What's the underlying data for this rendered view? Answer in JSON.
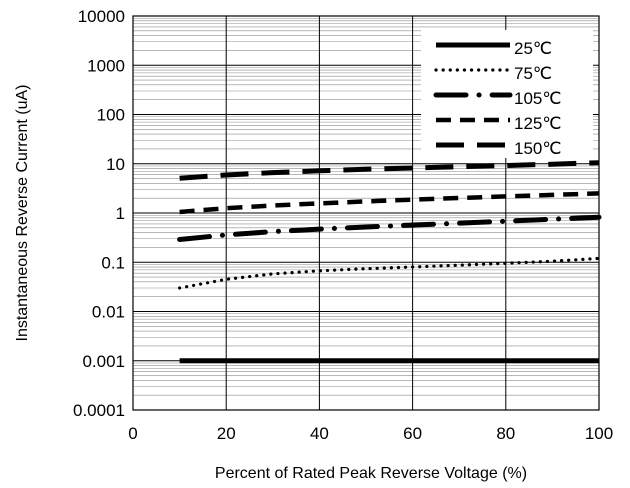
{
  "chart_data": {
    "type": "line",
    "title": "",
    "xlabel": "Percent of Rated Peak Reverse Voltage (%)",
    "ylabel": "Instantaneous Reverse Current (uA)",
    "xlim": [
      0,
      100
    ],
    "ylim": [
      0.0001,
      10000
    ],
    "yscale": "log",
    "x_ticks": [
      "0",
      "20",
      "40",
      "60",
      "80",
      "100"
    ],
    "y_ticks": [
      "0.0001",
      "0.001",
      "0.01",
      "0.1",
      "1",
      "10",
      "100",
      "1000",
      "10000"
    ],
    "grid": true,
    "legend_position": "top-right",
    "series": [
      {
        "name": "25℃",
        "style": "solid",
        "x": [
          10,
          20,
          40,
          60,
          80,
          100
        ],
        "values": [
          0.001,
          0.001,
          0.001,
          0.001,
          0.001,
          0.001
        ]
      },
      {
        "name": "75℃",
        "style": "dotted",
        "x": [
          10,
          20,
          30,
          40,
          50,
          60,
          70,
          80,
          90,
          100
        ],
        "values": [
          0.03,
          0.045,
          0.058,
          0.067,
          0.074,
          0.08,
          0.087,
          0.095,
          0.105,
          0.12
        ]
      },
      {
        "name": "105℃",
        "style": "long-dash-dot",
        "x": [
          10,
          20,
          30,
          40,
          50,
          60,
          70,
          80,
          90,
          100
        ],
        "values": [
          0.29,
          0.36,
          0.42,
          0.47,
          0.52,
          0.57,
          0.62,
          0.68,
          0.75,
          0.82
        ]
      },
      {
        "name": "125℃",
        "style": "dashed",
        "x": [
          10,
          20,
          30,
          40,
          50,
          60,
          70,
          80,
          90,
          100
        ],
        "values": [
          1.05,
          1.25,
          1.42,
          1.57,
          1.72,
          1.87,
          2.02,
          2.17,
          2.33,
          2.5
        ]
      },
      {
        "name": "150℃",
        "style": "long-dash",
        "x": [
          10,
          20,
          30,
          40,
          50,
          60,
          70,
          80,
          90,
          100
        ],
        "values": [
          5.1,
          5.9,
          6.6,
          7.2,
          7.7,
          8.2,
          8.7,
          9.2,
          9.8,
          10.5
        ]
      }
    ]
  }
}
